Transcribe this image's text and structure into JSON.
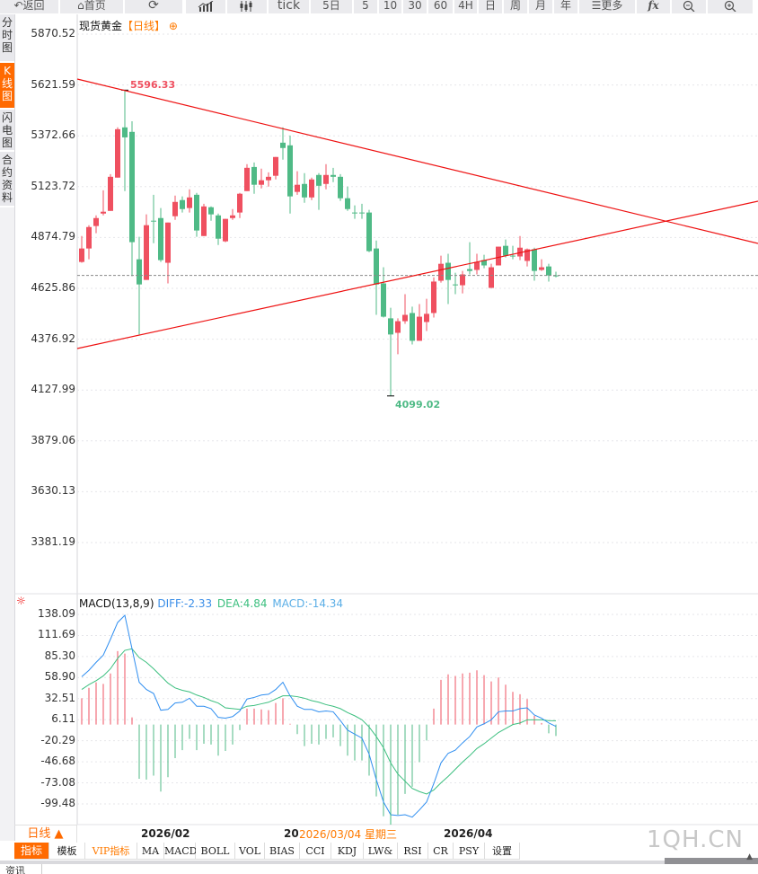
{
  "toolbar": {
    "back": "返回",
    "home": "首页",
    "tick": "tick",
    "five_day": "5日",
    "m5": "5",
    "m10": "10",
    "m30": "30",
    "m60": "60",
    "h4": "4H",
    "day": "日",
    "week": "周",
    "month": "月",
    "year": "年",
    "more": "更多",
    "fx": "fx"
  },
  "sidebar": {
    "tabs": [
      {
        "label": "分时图",
        "active": false
      },
      {
        "label": "K线图",
        "active": true
      },
      {
        "label": "闪电图",
        "active": false
      },
      {
        "label": "合约资料",
        "active": false
      }
    ]
  },
  "chart": {
    "symbol": "现货黄金",
    "period": "【日线】",
    "price_axis": [
      "5870.52",
      "5621.59",
      "5372.66",
      "5123.72",
      "4874.79",
      "4625.86",
      "4376.92",
      "4127.99",
      "3879.06",
      "3630.13",
      "3381.19"
    ],
    "high_label": "5596.33",
    "low_label": "4099.02",
    "colors": {
      "up": "#ef5060",
      "down": "#4fba86",
      "trendline": "#ee1111",
      "last_price_line": "#888888"
    }
  },
  "chart_data": {
    "type": "candlestick",
    "ylim": [
      3381.19,
      5870.52
    ],
    "x_tick_labels": [
      "2026/02",
      "20",
      "2026/04"
    ],
    "ohlc": [
      [
        4755,
        4882,
        4751,
        4821
      ],
      [
        4821,
        4935,
        4768,
        4926
      ],
      [
        4931,
        4983,
        4896,
        4970
      ],
      [
        4992,
        5106,
        4983,
        5001
      ],
      [
        5005,
        5185,
        5005,
        5172
      ],
      [
        5168,
        5414,
        5168,
        5405
      ],
      [
        5414,
        5596.33,
        5102,
        5365
      ],
      [
        5392,
        5444,
        4685,
        4852
      ],
      [
        4768,
        4878,
        4400,
        4645
      ],
      [
        4667,
        4988,
        4667,
        4935
      ],
      [
        4957,
        5084,
        4847,
        4957
      ],
      [
        4970,
        5019,
        4755,
        4764
      ],
      [
        4751,
        4948,
        4650,
        4948
      ],
      [
        4979,
        5080,
        4961,
        5049
      ],
      [
        5058,
        5076,
        4997,
        5014
      ],
      [
        5019,
        5111,
        4997,
        5071
      ],
      [
        5084,
        5093,
        4878,
        4909
      ],
      [
        4882,
        5040,
        4882,
        5027
      ],
      [
        5023,
        5027,
        4957,
        4988
      ],
      [
        4983,
        4992,
        4838,
        4869
      ],
      [
        4856,
        4966,
        4852,
        4966
      ],
      [
        4970,
        5014,
        4961,
        4983
      ],
      [
        4997,
        5093,
        4970,
        5089
      ],
      [
        5102,
        5234,
        5102,
        5216
      ],
      [
        5220,
        5242,
        5089,
        5133
      ],
      [
        5133,
        5212,
        5115,
        5155
      ],
      [
        5155,
        5194,
        5124,
        5172
      ],
      [
        5177,
        5269,
        5159,
        5269
      ],
      [
        5339,
        5414,
        5256,
        5313
      ],
      [
        5326,
        5374,
        4992,
        5076
      ],
      [
        5098,
        5199,
        5084,
        5133
      ],
      [
        5137,
        5190,
        5045,
        5071
      ],
      [
        5071,
        5168,
        5058,
        5159
      ],
      [
        5181,
        5190,
        5010,
        5128
      ],
      [
        5137,
        5234,
        5111,
        5181
      ],
      [
        5181,
        5216,
        5146,
        5172
      ],
      [
        5172,
        5185,
        5054,
        5067
      ],
      [
        5067,
        5124,
        5005,
        5014
      ],
      [
        4997,
        5032,
        4966,
        4997
      ],
      [
        4997,
        5040,
        4966,
        4997
      ],
      [
        4997,
        5010,
        4803,
        4808
      ],
      [
        4821,
        4860,
        4496,
        4645
      ],
      [
        4650,
        4729,
        4483,
        4487
      ],
      [
        4479,
        4531,
        4099.02,
        4400
      ],
      [
        4408,
        4479,
        4303,
        4465
      ],
      [
        4465,
        4597,
        4452,
        4496
      ],
      [
        4505,
        4536,
        4351,
        4369
      ],
      [
        4369,
        4549,
        4369,
        4487
      ],
      [
        4461,
        4575,
        4417,
        4501
      ],
      [
        4505,
        4680,
        4483,
        4659
      ],
      [
        4663,
        4786,
        4654,
        4746
      ],
      [
        4751,
        4795,
        4549,
        4667
      ],
      [
        4645,
        4702,
        4597,
        4641
      ],
      [
        4641,
        4711,
        4601,
        4694
      ],
      [
        4720,
        4852,
        4694,
        4711
      ],
      [
        4716,
        4795,
        4694,
        4755
      ],
      [
        4764,
        4790,
        4724,
        4738
      ],
      [
        4628,
        4746,
        4628,
        4729
      ],
      [
        4738,
        4830,
        4738,
        4830
      ],
      [
        4834,
        4865,
        4777,
        4786
      ],
      [
        4786,
        4834,
        4768,
        4782
      ],
      [
        4782,
        4882,
        4764,
        4825
      ],
      [
        4760,
        4821,
        4733,
        4817
      ],
      [
        4817,
        4825,
        4663,
        4711
      ],
      [
        4716,
        4768,
        4711,
        4729
      ],
      [
        4733,
        4746,
        4659,
        4689
      ],
      [
        4689,
        4707,
        4680,
        4689
      ]
    ],
    "last_price": 4689,
    "macd": {
      "name": "MACD(13,8,9)",
      "diff_label": "DIFF:-2.33",
      "dea_label": "DEA:4.84",
      "macd_label": "MACD:-14.34",
      "ylim": [
        -99.48,
        138.09
      ],
      "axis": [
        "138.09",
        "111.69",
        "85.30",
        "58.90",
        "32.51",
        "6.11",
        "-20.29",
        "-46.68",
        "-73.08",
        "-99.48"
      ],
      "colors": {
        "diff": "#2f8ef0",
        "dea": "#3cbf7f",
        "hist_up": "#ef5060",
        "hist_down": "#4fba86"
      },
      "diff": [
        60,
        68,
        78,
        87,
        107,
        128,
        137,
        95,
        53,
        44,
        39,
        18,
        19,
        27,
        28,
        33,
        23,
        23,
        20,
        9,
        8,
        10,
        17,
        32,
        34,
        37,
        38,
        44,
        53,
        36,
        23,
        19,
        19,
        16,
        17,
        16,
        5,
        -7,
        -12,
        -17,
        -37,
        -69,
        -97,
        -113,
        -114,
        -113,
        -116,
        -107,
        -97,
        -74,
        -48,
        -36,
        -32,
        -23,
        -15,
        -3,
        1,
        6,
        16,
        17,
        17,
        20,
        21,
        12,
        8,
        2,
        -2.33
      ],
      "dea": [
        44,
        50,
        55,
        61,
        70,
        83,
        93,
        95,
        84,
        78,
        70,
        61,
        52,
        46,
        43,
        41,
        37,
        34,
        30,
        27,
        21,
        20,
        19,
        23,
        24,
        26,
        28,
        32,
        36,
        36,
        35,
        33,
        30,
        28,
        25,
        23,
        20,
        15,
        11,
        6,
        -3,
        -15,
        -29,
        -48,
        -62,
        -71,
        -80,
        -84,
        -87,
        -82,
        -73,
        -65,
        -56,
        -47,
        -39,
        -30,
        -24,
        -17,
        -10,
        -5,
        0,
        2,
        6,
        6,
        6,
        5,
        4.84
      ],
      "hist": [
        33,
        46,
        53,
        51,
        64,
        92,
        89,
        9,
        -68,
        -69,
        -64,
        -84,
        -66,
        -42,
        -32,
        -18,
        -32,
        -24,
        -25,
        -39,
        -33,
        -25,
        -7,
        20,
        20,
        19,
        18,
        27,
        33,
        1,
        -12,
        -27,
        -24,
        -25,
        -18,
        -16,
        -27,
        -39,
        -45,
        -45,
        -64,
        -90,
        -115,
        -122,
        -113,
        -87,
        -78,
        -47,
        -20,
        20,
        56,
        63,
        61,
        64,
        65,
        68,
        62,
        54,
        59,
        50,
        41,
        38,
        32,
        11,
        2,
        -11,
        -14.34
      ]
    }
  },
  "crosshair": {
    "date_label": "2026/03/04 星期三"
  },
  "bottom": {
    "period_button": "日线 ▲",
    "indicators": [
      "指标",
      "模板",
      "VIP指标",
      "MA",
      "MACD",
      "BOLL",
      "VOL",
      "BIAS",
      "CCI",
      "KDJ",
      "LW&",
      "RSI",
      "CR",
      "PSY",
      "设置"
    ],
    "watermark": "1QH.CN",
    "news_tab": "资讯"
  }
}
